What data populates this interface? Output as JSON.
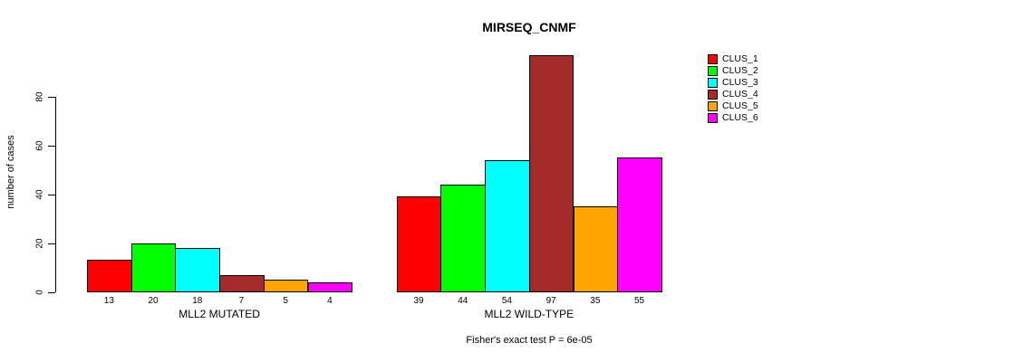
{
  "chart_data": {
    "type": "bar",
    "title": "MIRSEQ_CNMF",
    "ylabel": "number of cases",
    "xlabel": "",
    "footer": "Fisher's exact test P = 6e-05",
    "categories": [
      "MLL2 MUTATED",
      "MLL2 WILD-TYPE"
    ],
    "series": [
      {
        "name": "CLUS_1",
        "color": "#FF0000",
        "values": [
          13,
          39
        ]
      },
      {
        "name": "CLUS_2",
        "color": "#00FF00",
        "values": [
          20,
          44
        ]
      },
      {
        "name": "CLUS_3",
        "color": "#00FFFF",
        "values": [
          18,
          54
        ]
      },
      {
        "name": "CLUS_4",
        "color": "#A52A2A",
        "values": [
          7,
          97
        ]
      },
      {
        "name": "CLUS_5",
        "color": "#FFA500",
        "values": [
          5,
          35
        ]
      },
      {
        "name": "CLUS_6",
        "color": "#FF00FF",
        "values": [
          4,
          55
        ]
      }
    ],
    "yticks": [
      0,
      20,
      40,
      60,
      80
    ],
    "ylim": [
      0,
      100
    ],
    "bar_value_labels": true,
    "legend_position": "right-top",
    "grid": false,
    "axis_color": "#000000",
    "background_color": "#FFFFFF"
  }
}
